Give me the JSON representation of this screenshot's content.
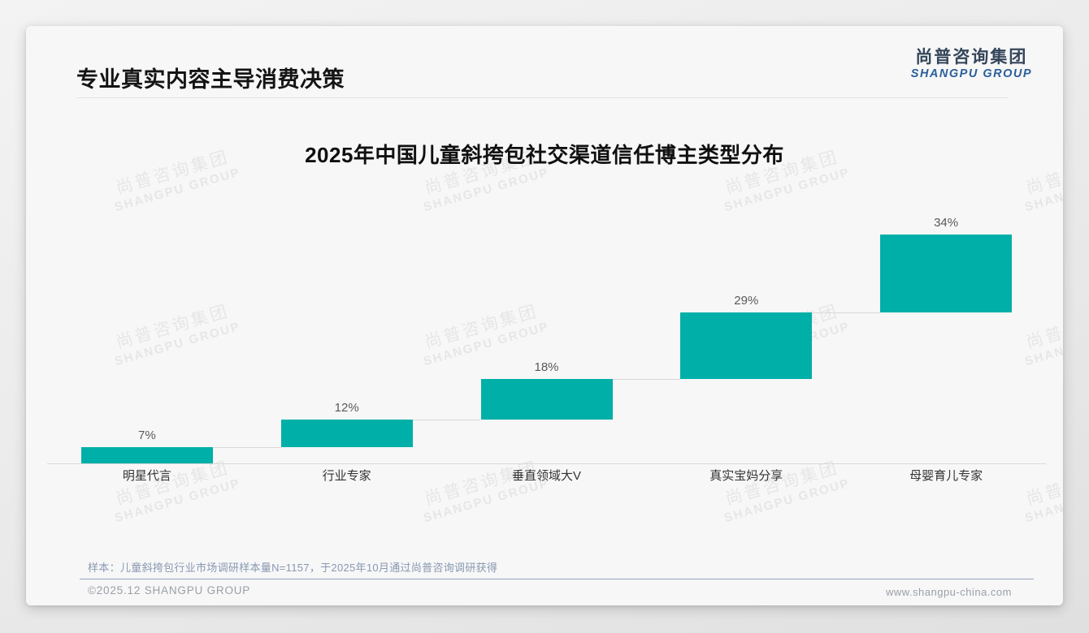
{
  "slide": {
    "title": "专业真实内容主导消费决策"
  },
  "logo": {
    "cn": "尚普咨询集团",
    "en": "SHANGPU GROUP"
  },
  "chart_data": {
    "type": "bar",
    "variant": "stepped-waterfall",
    "title": "2025年中国儿童斜挎包社交渠道信任博主类型分布",
    "categories": [
      "明星代言",
      "行业专家",
      "垂直领域大V",
      "真实宝妈分享",
      "母婴育儿专家"
    ],
    "values": [
      7,
      12,
      18,
      29,
      34
    ],
    "value_labels": [
      "7%",
      "12%",
      "18%",
      "29%",
      "34%"
    ],
    "cumulative_baselines": [
      0,
      7,
      19,
      37,
      66
    ],
    "unit": "%",
    "ylim": [
      0,
      100
    ],
    "bar_color": "#00AFA8",
    "grid": false,
    "legend": false,
    "value_label_position": "above-bar",
    "xlabel": "",
    "ylabel": ""
  },
  "footnote": "样本：儿童斜挎包行业市场调研样本量N=1157，于2025年10月通过尚普咨询调研获得",
  "footer": {
    "left": "©2025.12 SHANGPU GROUP",
    "right": "www.shangpu-china.com"
  },
  "watermark": {
    "line1": "尚普咨询集团",
    "line2": "SHANGPU GROUP"
  },
  "colors": {
    "bar": "#00AFA8",
    "axis_line": "#d8d8d8",
    "value_label": "#595959",
    "category_label": "#333333",
    "footnote_text": "#8898b0",
    "footer_text": "#9aa0a6",
    "logo_cn": "#35465a",
    "logo_en": "#2a5f9a"
  }
}
